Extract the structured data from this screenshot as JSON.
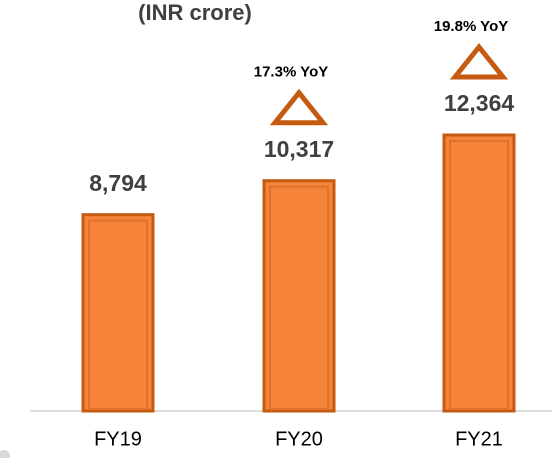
{
  "chart_data": {
    "type": "bar",
    "title": "(INR crore)",
    "categories": [
      "FY19",
      "FY20",
      "FY21"
    ],
    "values": [
      8794,
      10317,
      12364
    ],
    "value_labels": [
      "8,794",
      "10,317",
      "12,364"
    ],
    "color": "#f5843a",
    "annotations": [
      {
        "text": "17.3% YoY",
        "category": "FY20"
      },
      {
        "text": "19.8% YoY",
        "category": "FY21"
      }
    ]
  }
}
